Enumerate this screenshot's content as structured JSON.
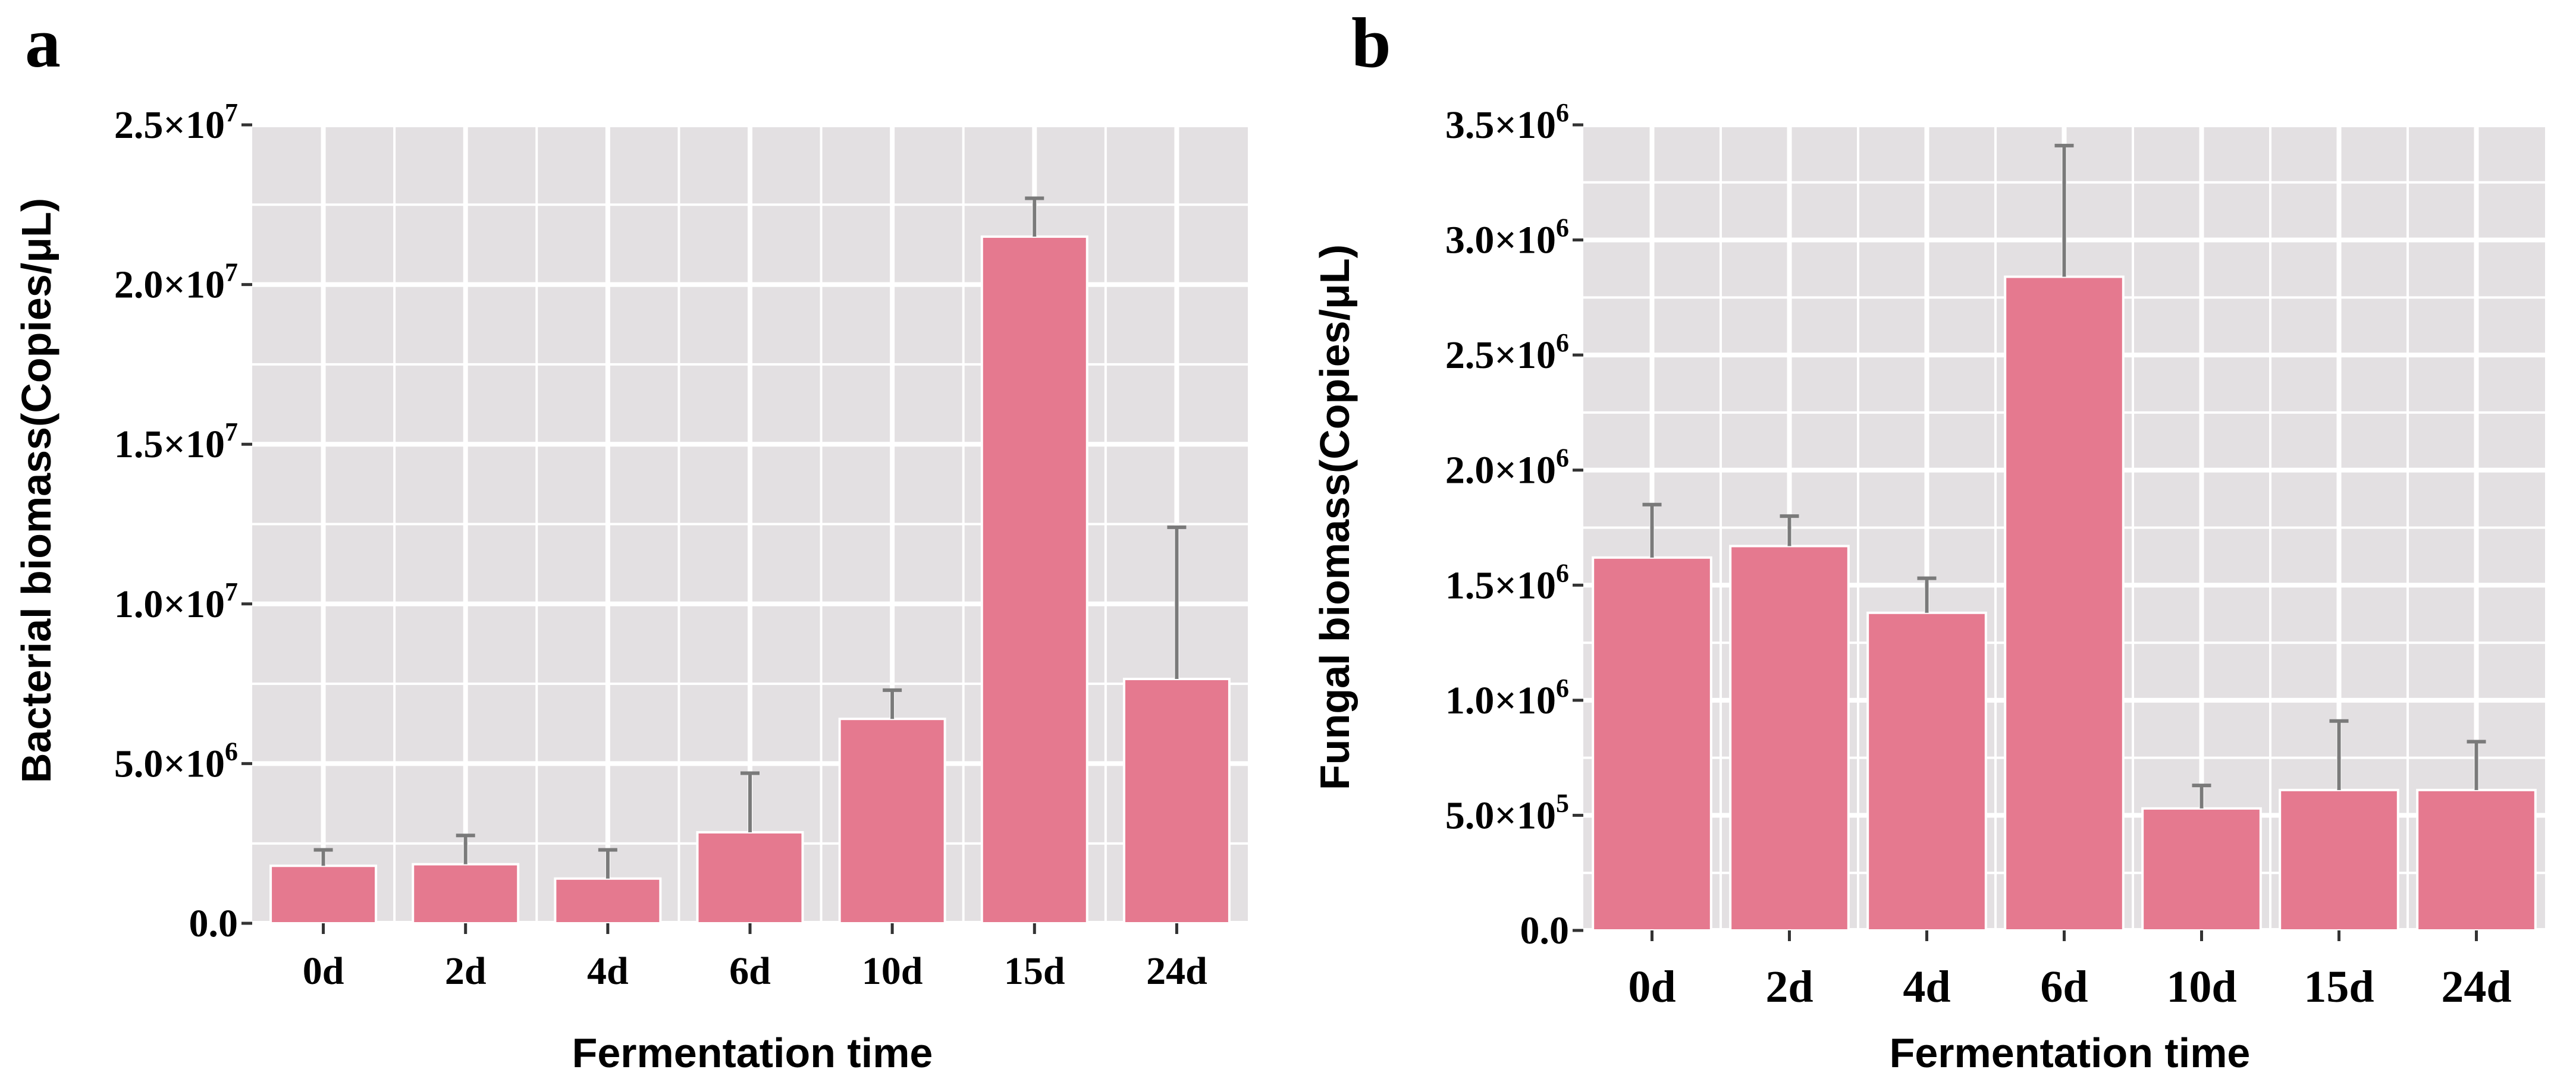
{
  "chart_data": [
    {
      "panel": "a",
      "type": "bar",
      "categories": [
        "0d",
        "2d",
        "4d",
        "6d",
        "10d",
        "15d",
        "24d"
      ],
      "values": [
        1800000,
        1850000,
        1400000,
        2850000,
        6400000,
        21500000,
        7650000
      ],
      "errors": [
        500000,
        900000,
        900000,
        1850000,
        900000,
        1200000,
        4750000
      ],
      "ylim": [
        0,
        25000000
      ],
      "yticks": [
        0,
        5000000,
        10000000,
        15000000,
        20000000,
        25000000
      ],
      "ytick_labels": [
        {
          "mantissa": "0.0",
          "exp": ""
        },
        {
          "mantissa": "5.0×10",
          "exp": "6"
        },
        {
          "mantissa": "1.0×10",
          "exp": "7"
        },
        {
          "mantissa": "1.5×10",
          "exp": "7"
        },
        {
          "mantissa": "2.0×10",
          "exp": "7"
        },
        {
          "mantissa": "2.5×10",
          "exp": "7"
        }
      ],
      "xlabel": "Fermentation time",
      "ylabel": "Bacterial biomass(Copies/μL)",
      "grid": true,
      "bar_color": "#e5798f",
      "error_color": "#7a7a7a",
      "panel_bg": "#e3e0e2"
    },
    {
      "panel": "b",
      "type": "bar",
      "categories": [
        "0d",
        "2d",
        "4d",
        "6d",
        "10d",
        "15d",
        "24d"
      ],
      "values": [
        1620000,
        1670000,
        1380000,
        2840000,
        530000,
        610000,
        610000
      ],
      "errors": [
        230000,
        130000,
        150000,
        570000,
        100000,
        300000,
        210000
      ],
      "ylim": [
        0,
        3500000
      ],
      "yticks": [
        0,
        500000,
        1000000,
        1500000,
        2000000,
        2500000,
        3000000,
        3500000
      ],
      "ytick_labels": [
        {
          "mantissa": "0.0",
          "exp": ""
        },
        {
          "mantissa": "5.0×10",
          "exp": "5"
        },
        {
          "mantissa": "1.0×10",
          "exp": "6"
        },
        {
          "mantissa": "1.5×10",
          "exp": "6"
        },
        {
          "mantissa": "2.0×10",
          "exp": "6"
        },
        {
          "mantissa": "2.5×10",
          "exp": "6"
        },
        {
          "mantissa": "3.0×10",
          "exp": "6"
        },
        {
          "mantissa": "3.5×10",
          "exp": "6"
        }
      ],
      "xlabel": "Fermentation time",
      "ylabel": "Fungal biomass(Copies/μL)",
      "grid": true,
      "bar_color": "#e5798f",
      "error_color": "#7a7a7a",
      "panel_bg": "#e3e0e2"
    }
  ]
}
